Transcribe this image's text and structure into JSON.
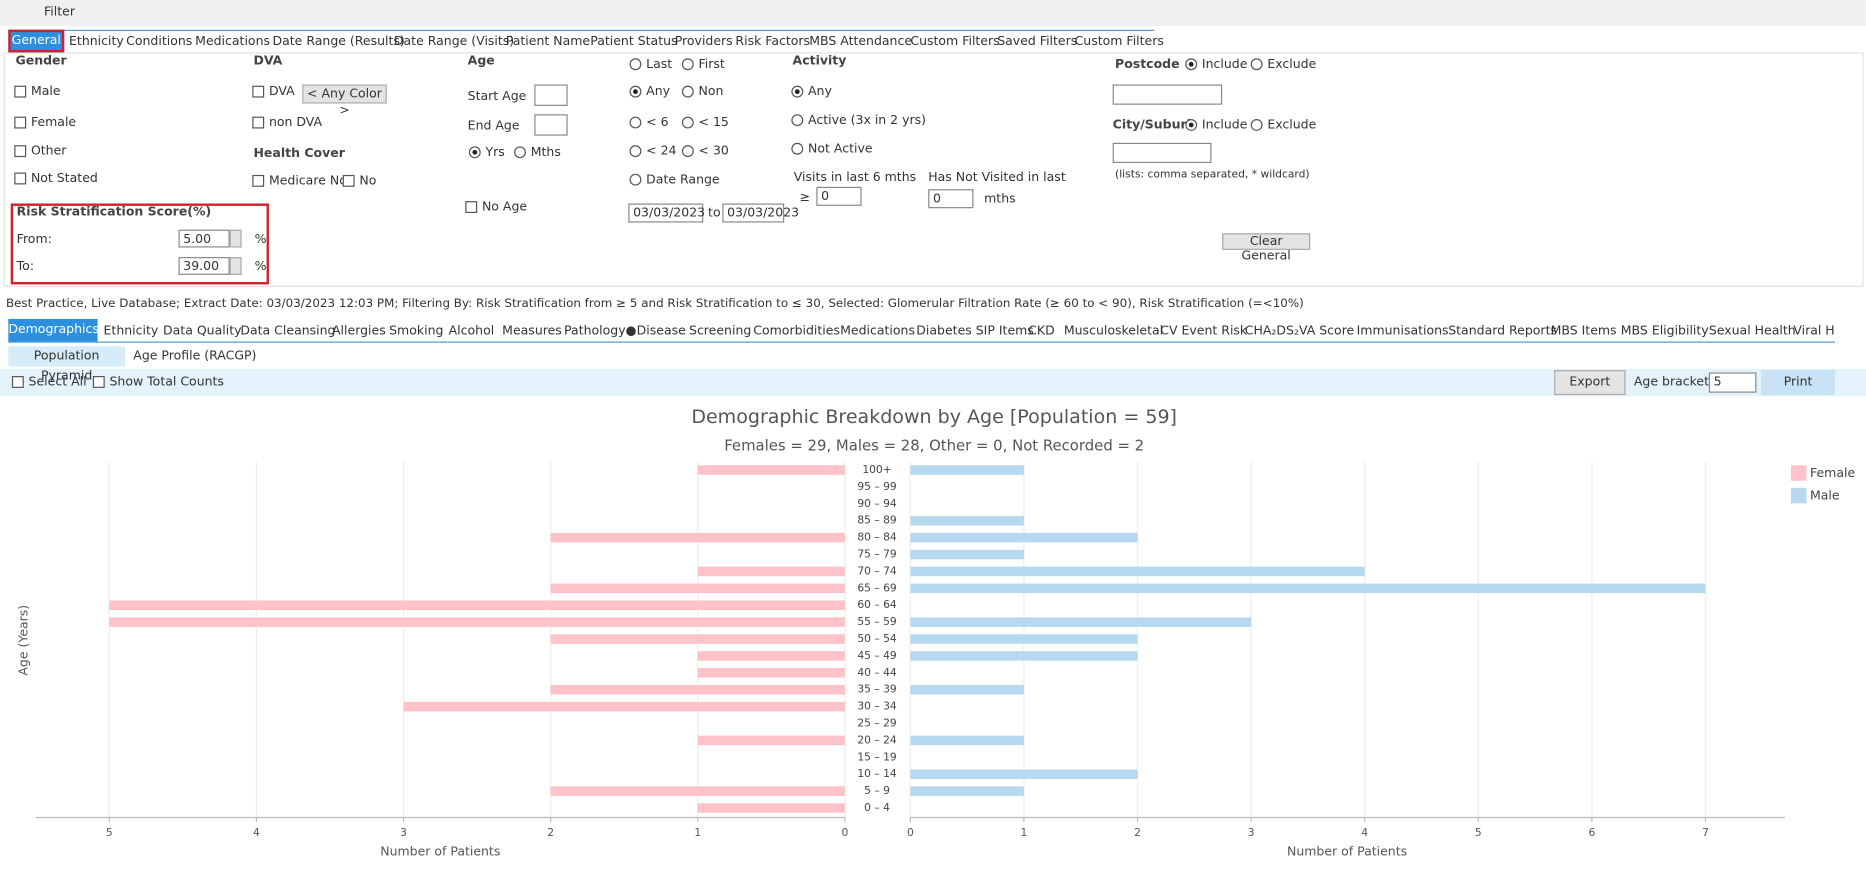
{
  "filter": {
    "toggle": "Filter",
    "tabs": [
      "General",
      "Ethnicity",
      "Conditions",
      "Medications",
      "Date Range (Results)",
      "Date Range (Visits)",
      "Patient Name",
      "Patient Status",
      "Providers",
      "Risk Factors",
      "MBS Attendance",
      "Custom Filters",
      "Saved Filters",
      "Custom Filters"
    ],
    "gender": {
      "title": "Gender",
      "options": [
        "Male",
        "Female",
        "Other",
        "Not Stated"
      ]
    },
    "dva": {
      "title": "DVA",
      "options": [
        "DVA",
        "non DVA"
      ],
      "color_button": "< Any Color >"
    },
    "health_cover": {
      "title": "Health Cover",
      "options": [
        "Medicare No.",
        "No"
      ]
    },
    "risk": {
      "title": "Risk Stratification Score(%)",
      "from_label": "From:",
      "from_value": "5.00",
      "to_label": "To:",
      "to_value": "39.00",
      "unit": "%"
    },
    "age": {
      "title": "Age",
      "start": "Start Age",
      "end": "End Age",
      "units": [
        "Yrs",
        "Mths"
      ],
      "no_age": "No Age"
    },
    "visit": {
      "options": [
        "Last",
        "First",
        "Any",
        "Non",
        "< 6",
        "< 15",
        "< 24",
        "< 30",
        "Date Range"
      ],
      "date_from": "03/03/2023",
      "to": "to",
      "date_to": "03/03/2023"
    },
    "activity": {
      "title": "Activity",
      "options": [
        "Any",
        "Active (3x in 2 yrs)",
        "Not Active"
      ],
      "visits_label": "Visits in last 6 mths",
      "ge": "≥",
      "visits_value": "0",
      "not_visited_label": "Has Not Visited in last",
      "not_visited_value": "0",
      "mths": "mths"
    },
    "postcode": {
      "title": "Postcode",
      "include": "Include",
      "exclude": "Exclude"
    },
    "city": {
      "title": "City/Suburb",
      "include": "Include",
      "exclude": "Exclude",
      "hint": "(lists: comma separated, * wildcard)"
    },
    "clear": "Clear General"
  },
  "status_line": "Best Practice, Live Database; Extract Date: 03/03/2023 12:03 PM; Filtering By: Risk Stratification from ≥ 5 and Risk Stratification to ≤ 30, Selected: Glomerular Filtration Rate (≥ 60 to < 90), Risk Stratification (=<10%)",
  "report_tabs": [
    "Demographics",
    "Ethnicity",
    "Data Quality",
    "Data Cleansing",
    "Allergies",
    "Smoking",
    "Alcohol",
    "Measures",
    "Pathology●",
    "Disease",
    "Screening",
    "Comorbidities",
    "Medications",
    "Diabetes SIP Items",
    "CKD",
    "Musculoskeletal",
    "CV Event Risk",
    "CHA₂DS₂VA Score",
    "Immunisations",
    "Standard Reports",
    "MBS Items",
    "MBS Eligibility",
    "Sexual Health",
    "Viral H"
  ],
  "sub_tabs": [
    "Population Pyramid",
    "Age Profile (RACGP)"
  ],
  "toolbar": {
    "select_all": "Select All",
    "show_totals": "Show Total Counts",
    "export": "Export",
    "age_bracket": "Age bracket",
    "age_bracket_value": "5",
    "print": "Print"
  },
  "chart_data": {
    "type": "pyramid",
    "title": "Demographic Breakdown by Age [Population = 59]",
    "subtitle": "Females = 29, Males = 28, Other = 0, Not Recorded = 2",
    "y_label": "Age (Years)",
    "categories": [
      "100+",
      "95 – 99",
      "90 – 94",
      "85 – 89",
      "80 – 84",
      "75 – 79",
      "70 – 74",
      "65 – 69",
      "60 – 64",
      "55 – 59",
      "50 – 54",
      "45 – 49",
      "40 – 44",
      "35 – 39",
      "30 – 34",
      "25 – 29",
      "20 – 24",
      "15 – 19",
      "10 – 14",
      "5 – 9",
      "0 – 4"
    ],
    "series": [
      {
        "name": "Female",
        "color": "#ffc2c8",
        "values": [
          1,
          0,
          0,
          0,
          2,
          0,
          1,
          2,
          5,
          5,
          2,
          1,
          1,
          2,
          3,
          0,
          1,
          0,
          0,
          2,
          1
        ],
        "xlim": [
          0,
          5.5
        ],
        "xticks": [
          0,
          1,
          2,
          3,
          4,
          5
        ],
        "x_label": "Number of Patients"
      },
      {
        "name": "Male",
        "color": "#b7d9f0",
        "values": [
          1,
          0,
          0,
          1,
          2,
          1,
          4,
          7,
          0,
          3,
          2,
          2,
          0,
          1,
          0,
          0,
          1,
          0,
          2,
          1,
          0
        ],
        "xlim": [
          0,
          7.7
        ],
        "xticks": [
          0,
          1,
          2,
          3,
          4,
          5,
          6,
          7
        ],
        "x_label": "Number of Patients"
      }
    ],
    "grid": true,
    "legend": "top-right"
  }
}
